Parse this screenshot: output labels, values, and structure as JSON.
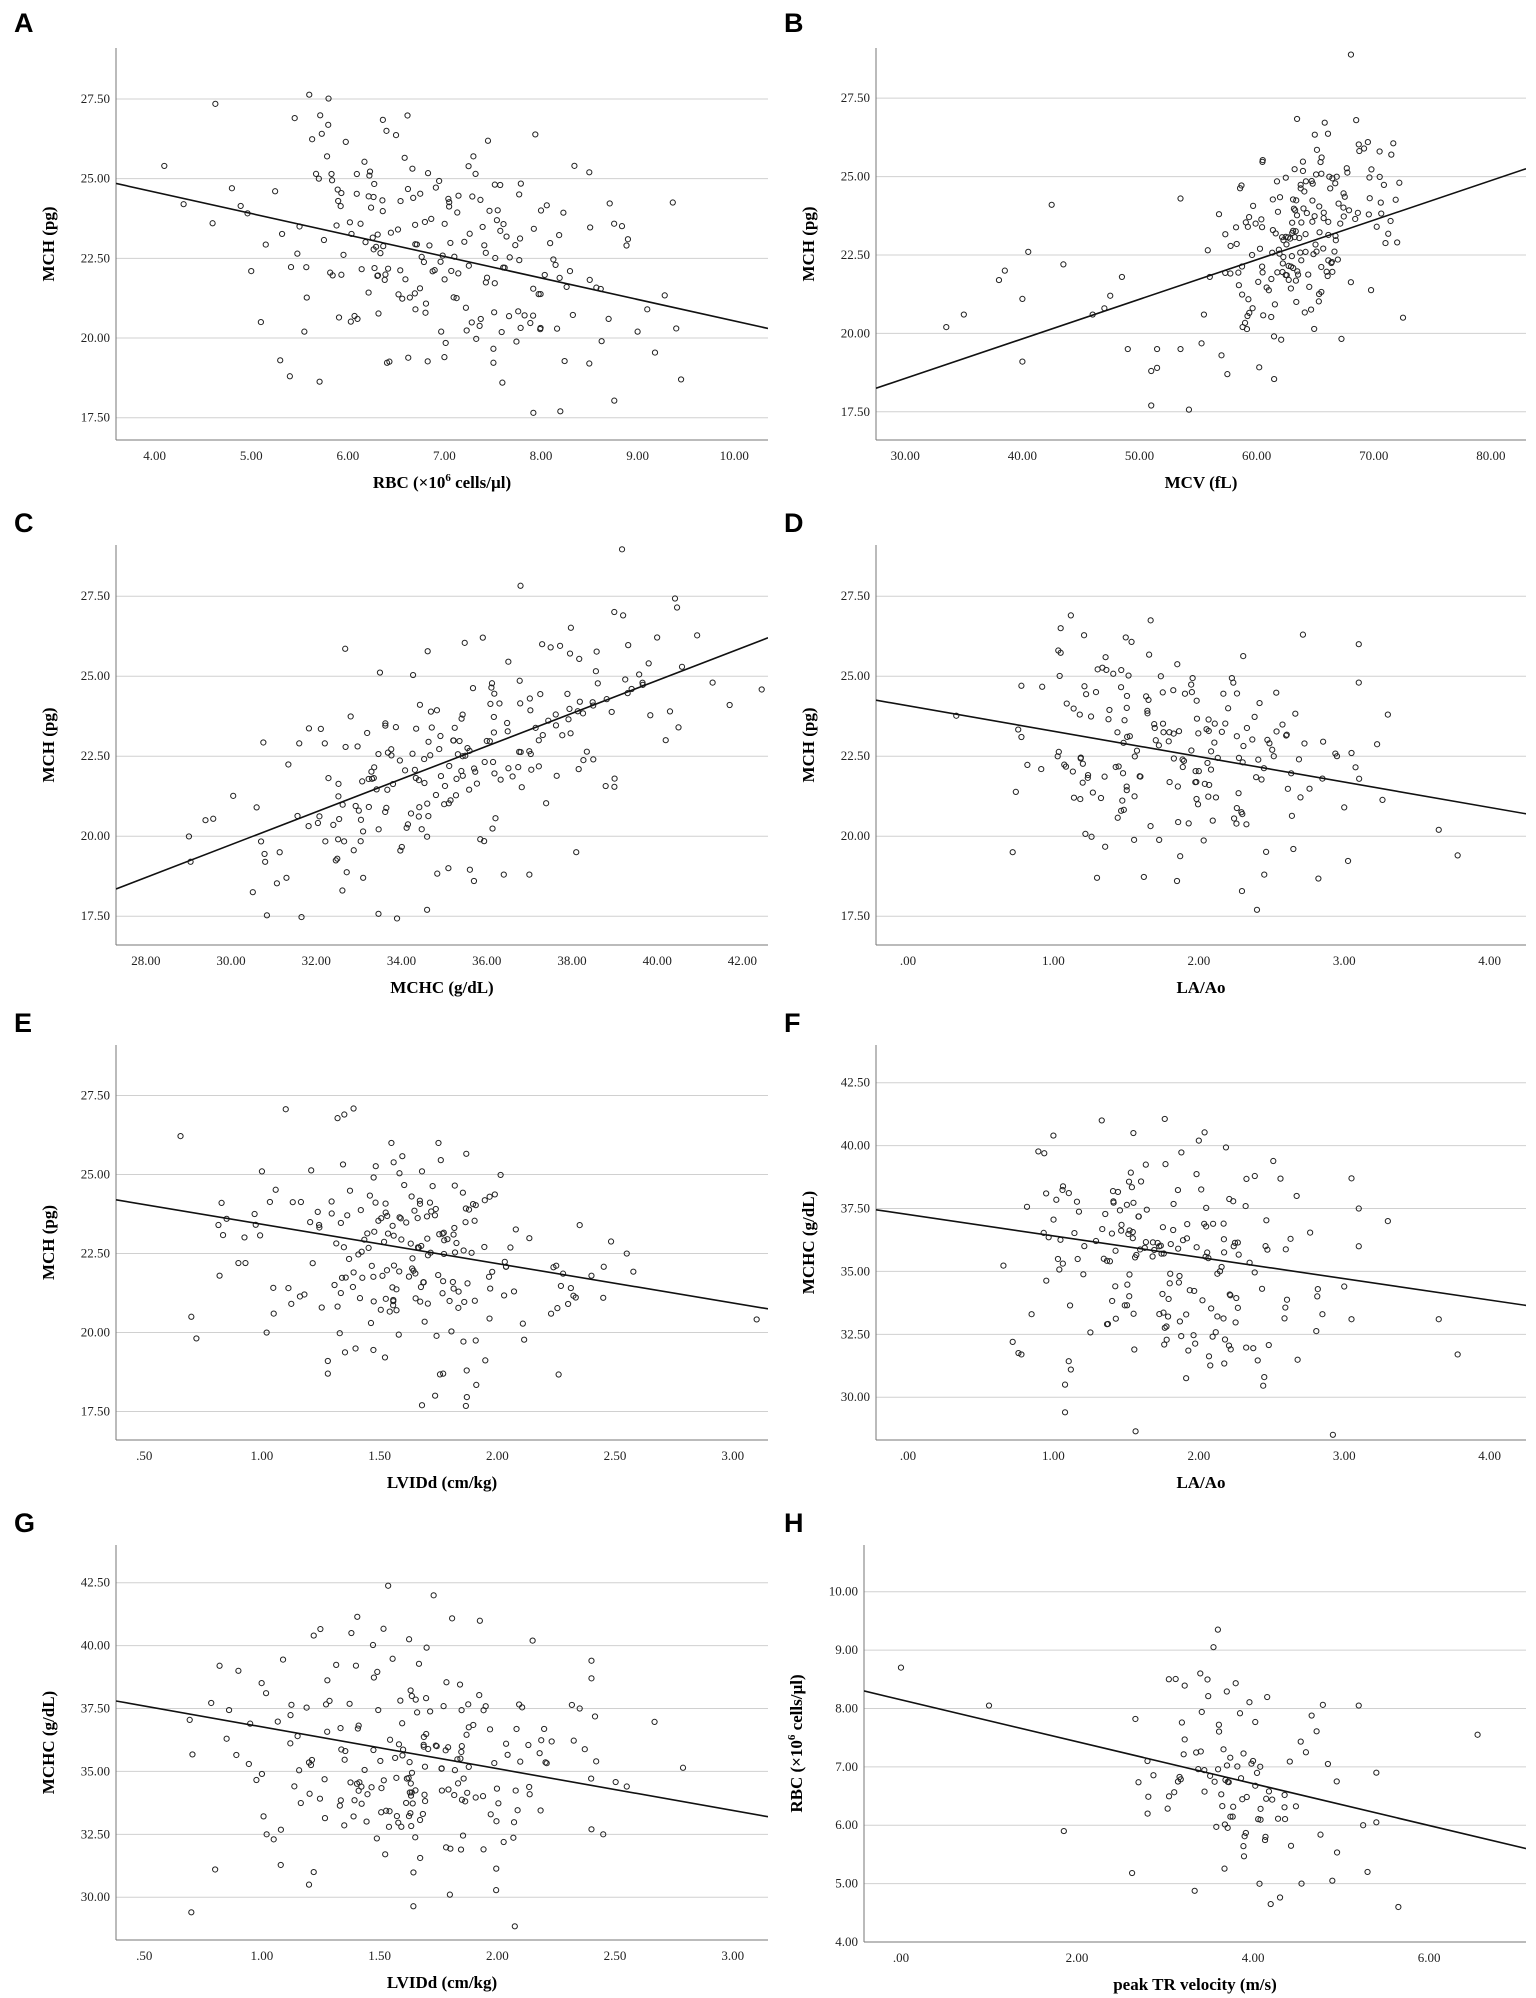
{
  "chart_data": [
    {
      "panel": "A",
      "type": "scatter",
      "xlabel_pre": "RBC (×10",
      "xlabel_sup": "6",
      "xlabel_post": " cells/µl)",
      "ylabel": "MCH (pg)",
      "xlim": [
        3.6,
        10.35
      ],
      "ylim": [
        16.8,
        29.1
      ],
      "xticks": [
        4,
        5,
        6,
        7,
        8,
        9,
        10
      ],
      "xtick_labels": [
        "4.00",
        "5.00",
        "6.00",
        "7.00",
        "8.00",
        "9.00",
        "10.00"
      ],
      "yticks": [
        17.5,
        20,
        22.5,
        25,
        27.5
      ],
      "ytick_labels": [
        "17.50",
        "20.00",
        "22.50",
        "25.00",
        "27.50"
      ],
      "fit_line": [
        [
          3.6,
          24.85
        ],
        [
          10.35,
          20.3
        ]
      ],
      "n_points": 230,
      "seed": 11,
      "points": [
        [
          4.1,
          25.4
        ],
        [
          4.3,
          24.2
        ],
        [
          4.6,
          23.6
        ],
        [
          4.8,
          24.7
        ],
        [
          5.0,
          22.1
        ],
        [
          5.1,
          20.5
        ],
        [
          5.3,
          19.3
        ],
        [
          5.4,
          18.8
        ],
        [
          5.45,
          26.9
        ],
        [
          5.5,
          23.5
        ],
        [
          5.55,
          20.2
        ],
        [
          5.7,
          25.0
        ],
        [
          5.9,
          24.3
        ],
        [
          6.1,
          20.6
        ],
        [
          6.4,
          26.5
        ],
        [
          6.7,
          20.9
        ],
        [
          7.0,
          19.4
        ],
        [
          7.3,
          25.7
        ],
        [
          7.6,
          18.6
        ],
        [
          8.0,
          24.0
        ],
        [
          8.2,
          17.7
        ],
        [
          8.3,
          22.1
        ],
        [
          8.5,
          25.2
        ],
        [
          8.5,
          19.2
        ],
        [
          8.7,
          20.6
        ],
        [
          8.9,
          23.1
        ],
        [
          9.0,
          20.2
        ],
        [
          9.1,
          20.9
        ],
        [
          9.4,
          20.3
        ],
        [
          9.45,
          18.7
        ]
      ],
      "cloud": {
        "x_mean": 6.9,
        "x_sd": 0.85,
        "y_mean": 22.8,
        "y_sd": 1.75,
        "slope": -0.68
      }
    },
    {
      "panel": "B",
      "type": "scatter",
      "xlabel_pre": "MCV (fL)",
      "xlabel_sup": "",
      "xlabel_post": "",
      "ylabel": "MCH (pg)",
      "xlim": [
        27.5,
        83.0
      ],
      "ylim": [
        16.6,
        29.1
      ],
      "xticks": [
        30,
        40,
        50,
        60,
        70,
        80
      ],
      "xtick_labels": [
        "30.00",
        "40.00",
        "50.00",
        "60.00",
        "70.00",
        "80.00"
      ],
      "yticks": [
        17.5,
        20,
        22.5,
        25,
        27.5
      ],
      "ytick_labels": [
        "17.50",
        "20.00",
        "22.50",
        "25.00",
        "27.50"
      ],
      "fit_line": [
        [
          27.5,
          18.25
        ],
        [
          83.0,
          25.25
        ]
      ],
      "n_points": 215,
      "seed": 23,
      "points": [
        [
          33.5,
          20.2
        ],
        [
          35,
          20.6
        ],
        [
          38,
          21.7
        ],
        [
          38.5,
          22.0
        ],
        [
          40,
          19.1
        ],
        [
          40,
          21.1
        ],
        [
          40.5,
          22.6
        ],
        [
          42.5,
          24.1
        ],
        [
          43.5,
          22.2
        ],
        [
          46,
          20.6
        ],
        [
          47,
          20.8
        ],
        [
          47.5,
          21.2
        ],
        [
          48.5,
          21.8
        ],
        [
          49,
          19.5
        ],
        [
          51,
          18.8
        ],
        [
          51,
          17.7
        ],
        [
          51.5,
          18.9
        ],
        [
          51.5,
          19.5
        ],
        [
          53.5,
          24.3
        ],
        [
          53.5,
          19.5
        ],
        [
          55.5,
          20.6
        ],
        [
          56,
          21.8
        ],
        [
          57,
          19.3
        ],
        [
          57.5,
          18.7
        ],
        [
          72.5,
          20.5
        ],
        [
          72,
          22.9
        ],
        [
          71.5,
          25.7
        ],
        [
          69.5,
          26.1
        ],
        [
          68.5,
          26.8
        ],
        [
          70.5,
          25.8
        ]
      ],
      "cloud": {
        "x_mean": 63.5,
        "x_sd": 3.6,
        "y_mean": 22.9,
        "y_sd": 1.55,
        "slope": 0.2
      }
    },
    {
      "panel": "C",
      "type": "scatter",
      "xlabel_pre": "MCHC (g/dL)",
      "xlabel_sup": "",
      "xlabel_post": "",
      "ylabel": "MCH (pg)",
      "xlim": [
        27.3,
        42.6
      ],
      "ylim": [
        16.6,
        29.1
      ],
      "xticks": [
        28,
        30,
        32,
        34,
        36,
        38,
        40,
        42
      ],
      "xtick_labels": [
        "28.00",
        "30.00",
        "32.00",
        "34.00",
        "36.00",
        "38.00",
        "40.00",
        "42.00"
      ],
      "yticks": [
        17.5,
        20,
        22.5,
        25,
        27.5
      ],
      "ytick_labels": [
        "17.50",
        "20.00",
        "22.50",
        "25.00",
        "27.50"
      ],
      "fit_line": [
        [
          27.3,
          18.35
        ],
        [
          42.6,
          26.2
        ]
      ],
      "n_points": 235,
      "seed": 37,
      "points": [
        [
          29.4,
          20.5
        ],
        [
          30.6,
          20.9
        ],
        [
          30.8,
          19.2
        ],
        [
          31.3,
          18.7
        ],
        [
          31.6,
          22.9
        ],
        [
          32.2,
          22.9
        ],
        [
          33.1,
          18.7
        ],
        [
          34.6,
          17.7
        ],
        [
          35.1,
          19.0
        ],
        [
          35.7,
          18.6
        ],
        [
          36.4,
          18.8
        ],
        [
          37.0,
          18.8
        ],
        [
          38.1,
          19.5
        ],
        [
          39.2,
          26.9
        ],
        [
          39.4,
          24.6
        ],
        [
          39.8,
          25.4
        ],
        [
          40.2,
          23.0
        ],
        [
          40.3,
          23.9
        ],
        [
          40.5,
          23.4
        ],
        [
          41.3,
          24.8
        ],
        [
          41.7,
          24.1
        ],
        [
          39.0,
          21.8
        ],
        [
          38.5,
          22.4
        ],
        [
          37.3,
          26.0
        ],
        [
          37.5,
          25.9
        ]
      ],
      "cloud": {
        "x_mean": 35.5,
        "x_sd": 2.4,
        "y_mean": 22.6,
        "y_sd": 1.55,
        "slope": 0.55
      }
    },
    {
      "panel": "D",
      "type": "scatter",
      "xlabel_pre": "LA/Ao",
      "xlabel_sup": "",
      "xlabel_post": "",
      "ylabel": "MCH (pg)",
      "xlim": [
        -0.22,
        4.25
      ],
      "ylim": [
        16.6,
        29.1
      ],
      "xticks": [
        0,
        1,
        2,
        3,
        4
      ],
      "xtick_labels": [
        ".00",
        "1.00",
        "2.00",
        "3.00",
        "4.00"
      ],
      "yticks": [
        17.5,
        20,
        22.5,
        25,
        27.5
      ],
      "ytick_labels": [
        "17.50",
        "20.00",
        "22.50",
        "25.00",
        "27.50"
      ],
      "fit_line": [
        [
          -0.22,
          24.25
        ],
        [
          4.25,
          20.7
        ]
      ],
      "n_points": 205,
      "seed": 51,
      "points": [
        [
          0.72,
          19.5
        ],
        [
          0.78,
          23.1
        ],
        [
          1.05,
          26.5
        ],
        [
          1.12,
          26.9
        ],
        [
          1.3,
          18.7
        ],
        [
          1.85,
          18.6
        ],
        [
          2.4,
          17.7
        ],
        [
          2.45,
          18.8
        ],
        [
          2.65,
          19.6
        ],
        [
          3.05,
          22.6
        ],
        [
          3.1,
          26.0
        ],
        [
          3.1,
          24.8
        ],
        [
          3.3,
          23.8
        ],
        [
          3.65,
          20.2
        ],
        [
          3.78,
          19.4
        ],
        [
          3.0,
          20.9
        ],
        [
          2.85,
          21.8
        ],
        [
          2.95,
          22.5
        ]
      ],
      "cloud": {
        "x_mean": 1.75,
        "x_sd": 0.52,
        "y_mean": 22.6,
        "y_sd": 1.65,
        "slope": -0.7
      }
    },
    {
      "panel": "E",
      "type": "scatter",
      "xlabel_pre": "LVIDd (cm/kg)",
      "xlabel_sup": "",
      "xlabel_post": "",
      "ylabel": "MCH (pg)",
      "xlim": [
        0.38,
        3.15
      ],
      "ylim": [
        16.6,
        29.1
      ],
      "xticks": [
        0.5,
        1,
        1.5,
        2,
        2.5,
        3
      ],
      "xtick_labels": [
        ".50",
        "1.00",
        "1.50",
        "2.00",
        "2.50",
        "3.00"
      ],
      "yticks": [
        17.5,
        20,
        22.5,
        25,
        27.5
      ],
      "ytick_labels": [
        "17.50",
        "20.00",
        "22.50",
        "25.00",
        "27.50"
      ],
      "fit_line": [
        [
          0.38,
          24.2
        ],
        [
          3.15,
          20.75
        ]
      ],
      "n_points": 225,
      "seed": 67,
      "points": [
        [
          0.7,
          20.5
        ],
        [
          0.82,
          21.8
        ],
        [
          0.85,
          23.6
        ],
        [
          0.9,
          22.2
        ],
        [
          0.93,
          22.2
        ],
        [
          1.0,
          25.1
        ],
        [
          1.02,
          20.0
        ],
        [
          1.05,
          20.6
        ],
        [
          1.35,
          26.9
        ],
        [
          1.28,
          18.7
        ],
        [
          1.28,
          19.1
        ],
        [
          1.68,
          17.7
        ],
        [
          1.77,
          18.7
        ],
        [
          1.87,
          18.8
        ],
        [
          2.55,
          22.5
        ],
        [
          2.45,
          21.1
        ],
        [
          2.4,
          21.8
        ],
        [
          2.35,
          23.4
        ],
        [
          1.75,
          26.0
        ],
        [
          1.55,
          26.0
        ]
      ],
      "cloud": {
        "x_mean": 1.62,
        "x_sd": 0.36,
        "y_mean": 22.6,
        "y_sd": 1.65,
        "slope": -1.25
      }
    },
    {
      "panel": "F",
      "type": "scatter",
      "xlabel_pre": "LA/Ao",
      "xlabel_sup": "",
      "xlabel_post": "",
      "ylabel": "MCHC (g/dL)",
      "xlim": [
        -0.22,
        4.25
      ],
      "ylim": [
        28.3,
        44.0
      ],
      "xticks": [
        0,
        1,
        2,
        3,
        4
      ],
      "xtick_labels": [
        ".00",
        "1.00",
        "2.00",
        "3.00",
        "4.00"
      ],
      "yticks": [
        30,
        32.5,
        35,
        37.5,
        40,
        42.5
      ],
      "ytick_labels": [
        "30.00",
        "32.50",
        "35.00",
        "37.50",
        "40.00",
        "42.50"
      ],
      "fit_line": [
        [
          -0.22,
          37.45
        ],
        [
          4.25,
          33.65
        ]
      ],
      "n_points": 205,
      "seed": 83,
      "points": [
        [
          0.72,
          32.2
        ],
        [
          0.78,
          31.7
        ],
        [
          0.85,
          33.3
        ],
        [
          0.95,
          38.1
        ],
        [
          1.0,
          40.4
        ],
        [
          1.08,
          30.5
        ],
        [
          1.08,
          29.4
        ],
        [
          1.12,
          31.1
        ],
        [
          1.55,
          40.5
        ],
        [
          2.0,
          40.2
        ],
        [
          2.45,
          30.8
        ],
        [
          3.05,
          38.7
        ],
        [
          3.1,
          37.5
        ],
        [
          3.1,
          36.0
        ],
        [
          3.3,
          37.0
        ],
        [
          3.65,
          33.1
        ],
        [
          3.78,
          31.7
        ],
        [
          3.0,
          34.4
        ],
        [
          3.05,
          33.1
        ],
        [
          2.85,
          33.3
        ]
      ],
      "cloud": {
        "x_mean": 1.75,
        "x_sd": 0.52,
        "y_mean": 35.5,
        "y_sd": 2.45,
        "slope": -0.85
      }
    },
    {
      "panel": "G",
      "type": "scatter",
      "xlabel_pre": "LVIDd (cm/kg)",
      "xlabel_sup": "",
      "xlabel_post": "",
      "ylabel": "MCHC (g/dL)",
      "xlim": [
        0.38,
        3.15
      ],
      "ylim": [
        28.3,
        44.0
      ],
      "xticks": [
        0.5,
        1,
        1.5,
        2,
        2.5,
        3
      ],
      "xtick_labels": [
        ".50",
        "1.00",
        "1.50",
        "2.00",
        "2.50",
        "3.00"
      ],
      "yticks": [
        30,
        32.5,
        35,
        37.5,
        40,
        42.5
      ],
      "ytick_labels": [
        "30.00",
        "32.50",
        "35.00",
        "37.50",
        "40.00",
        "42.50"
      ],
      "fit_line": [
        [
          0.38,
          37.8
        ],
        [
          3.15,
          33.2
        ]
      ],
      "n_points": 225,
      "seed": 97,
      "points": [
        [
          0.7,
          29.4
        ],
        [
          0.85,
          36.3
        ],
        [
          0.82,
          39.2
        ],
        [
          0.9,
          39.0
        ],
        [
          0.95,
          36.9
        ],
        [
          1.0,
          34.9
        ],
        [
          1.02,
          32.5
        ],
        [
          1.05,
          32.3
        ],
        [
          1.22,
          40.4
        ],
        [
          1.22,
          31.0
        ],
        [
          1.2,
          30.5
        ],
        [
          1.38,
          40.5
        ],
        [
          2.15,
          40.2
        ],
        [
          2.4,
          39.4
        ],
        [
          2.4,
          38.7
        ],
        [
          2.55,
          34.4
        ],
        [
          2.45,
          32.5
        ],
        [
          2.4,
          32.7
        ],
        [
          2.35,
          37.5
        ],
        [
          2.42,
          35.4
        ]
      ],
      "cloud": {
        "x_mean": 1.62,
        "x_sd": 0.36,
        "y_mean": 35.4,
        "y_sd": 2.5,
        "slope": -1.6
      }
    },
    {
      "panel": "H",
      "type": "scatter",
      "xlabel_pre": "peak TR velocity (m/s)",
      "xlabel_sup": "",
      "xlabel_post": "",
      "ylabel_pre": "RBC (×10",
      "ylabel_sup": "6",
      "ylabel_post": " cells/µl)",
      "ylabel": "RBC (×10⁶ cells/µl)",
      "xlim": [
        -0.42,
        7.1
      ],
      "ylim": [
        4.0,
        10.8
      ],
      "xticks": [
        0,
        2,
        4,
        6
      ],
      "xtick_labels": [
        ".00",
        "2.00",
        "4.00",
        "6.00"
      ],
      "yticks": [
        4,
        5,
        6,
        7,
        8,
        9,
        10
      ],
      "ytick_labels": [
        "4.00",
        "5.00",
        "6.00",
        "7.00",
        "8.00",
        "9.00",
        "10.00"
      ],
      "fit_line": [
        [
          -0.42,
          8.3
        ],
        [
          7.1,
          5.6
        ]
      ],
      "n_points": 110,
      "seed": 113,
      "points": [
        [
          0.0,
          8.7
        ],
        [
          1.0,
          8.05
        ],
        [
          1.85,
          5.9
        ],
        [
          2.8,
          7.1
        ],
        [
          3.6,
          9.35
        ],
        [
          3.55,
          9.05
        ],
        [
          3.4,
          8.6
        ],
        [
          5.2,
          8.05
        ],
        [
          6.55,
          7.55
        ],
        [
          5.65,
          4.6
        ],
        [
          4.2,
          4.65
        ],
        [
          4.55,
          5.0
        ],
        [
          4.9,
          5.05
        ],
        [
          5.3,
          5.2
        ],
        [
          5.4,
          6.05
        ],
        [
          5.4,
          6.9
        ],
        [
          5.25,
          6.0
        ],
        [
          4.95,
          6.75
        ],
        [
          4.85,
          7.05
        ],
        [
          4.6,
          7.25
        ]
      ],
      "cloud": {
        "x_mean": 3.75,
        "x_sd": 0.5,
        "y_mean": 6.85,
        "y_sd": 0.85,
        "slope": -0.5
      }
    }
  ]
}
